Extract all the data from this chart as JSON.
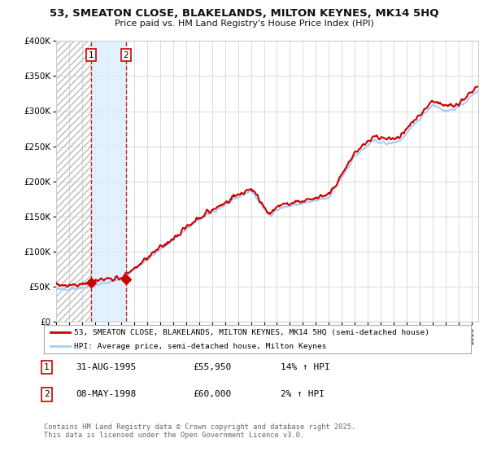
{
  "title": "53, SMEATON CLOSE, BLAKELANDS, MILTON KEYNES, MK14 5HQ",
  "subtitle": "Price paid vs. HM Land Registry's House Price Index (HPI)",
  "hpi_label": "HPI: Average price, semi-detached house, Milton Keynes",
  "property_label": "53, SMEATON CLOSE, BLAKELANDS, MILTON KEYNES, MK14 5HQ (semi-detached house)",
  "sale1_date": "31-AUG-1995",
  "sale1_price": "£55,950",
  "sale1_hpi": "14% ↑ HPI",
  "sale2_date": "08-MAY-1998",
  "sale2_price": "£60,000",
  "sale2_hpi": "2% ↑ HPI",
  "sale1_year": 1995.67,
  "sale2_year": 1998.36,
  "sale1_value": 55950,
  "sale2_value": 60000,
  "ylim": [
    0,
    400000
  ],
  "xlim_start": 1993.0,
  "xlim_end": 2025.5,
  "background_color": "#ffffff",
  "plot_bg_color": "#ffffff",
  "grid_color": "#cccccc",
  "hpi_line_color": "#aaccee",
  "property_line_color": "#cc0000",
  "dashed_line_color": "#cc0000",
  "shade_color": "#ddeeff",
  "copyright_text": "Contains HM Land Registry data © Crown copyright and database right 2025.\nThis data is licensed under the Open Government Licence v3.0.",
  "marker_color": "#cc0000",
  "box_edge_color": "#cc0000"
}
